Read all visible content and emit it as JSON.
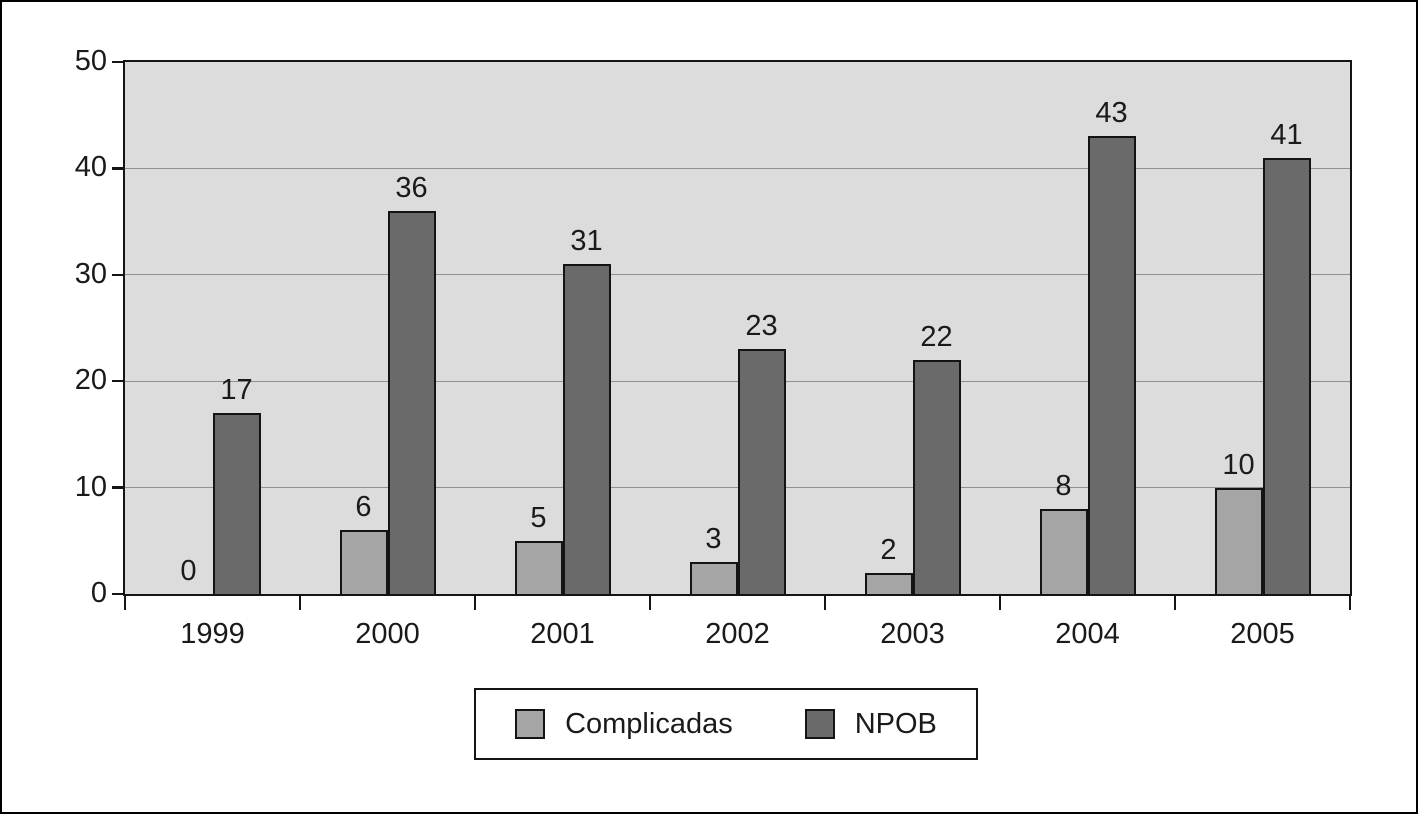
{
  "chart_data": {
    "type": "bar",
    "title": "",
    "xlabel": "",
    "ylabel": "",
    "categories": [
      "1999",
      "2000",
      "2001",
      "2002",
      "2003",
      "2004",
      "2005"
    ],
    "series": [
      {
        "name": "Complicadas",
        "color": "#a5a5a5",
        "values": [
          0,
          6,
          5,
          3,
          2,
          8,
          10
        ]
      },
      {
        "name": "NPOB",
        "color": "#6a6a6a",
        "values": [
          17,
          36,
          31,
          23,
          22,
          43,
          41
        ]
      }
    ],
    "ylim": [
      0,
      50
    ],
    "yticks": [
      0,
      10,
      20,
      30,
      40,
      50
    ],
    "grid": true,
    "legend_position": "bottom-center",
    "colors": {
      "plot_background": "#dcdcdc",
      "gridline": "#909090",
      "axis": "#141414",
      "text": "#1a1a1a",
      "page_background": "#ffffff"
    }
  }
}
